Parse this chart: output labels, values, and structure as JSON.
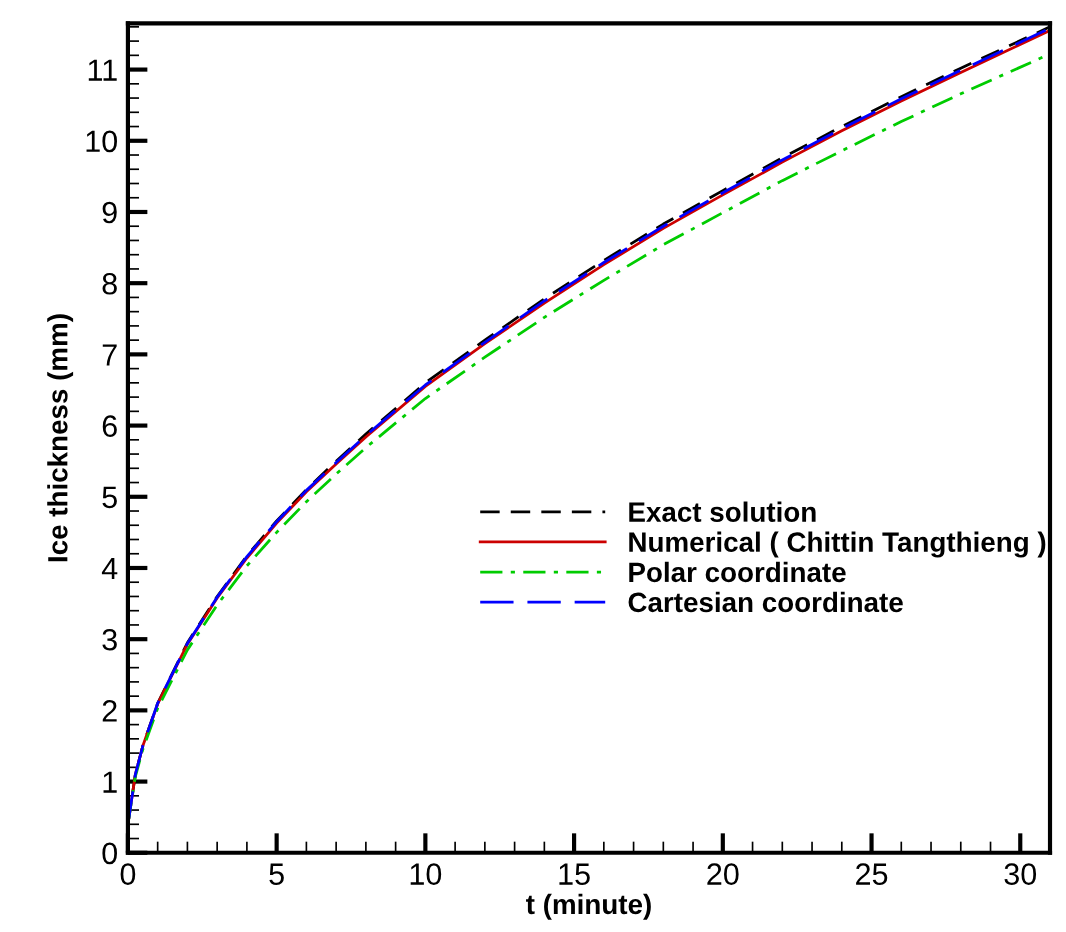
{
  "chart_data": {
    "type": "line",
    "xlabel": "t (minute)",
    "ylabel": "Ice thickness (mm)",
    "xlim": [
      0,
      31
    ],
    "ylim": [
      0,
      11.65
    ],
    "xticks": [
      0,
      5,
      10,
      15,
      20,
      25,
      30
    ],
    "yticks": [
      0,
      1,
      2,
      3,
      4,
      5,
      6,
      7,
      8,
      9,
      10,
      11
    ],
    "grid": false,
    "legend": "bottom right",
    "x": [
      0,
      0.25,
      0.5,
      1,
      2,
      3,
      4,
      5,
      6,
      7,
      8,
      10,
      12,
      14,
      16,
      18,
      20,
      22,
      24,
      26,
      28,
      31
    ],
    "series": [
      {
        "name": "Exact solution",
        "color": "#000000",
        "line_style": "dashed",
        "values": [
          0.4,
          1.1,
          1.5,
          2.1,
          2.95,
          3.6,
          4.17,
          4.66,
          5.1,
          5.5,
          5.88,
          6.6,
          7.2,
          7.78,
          8.32,
          8.83,
          9.3,
          9.76,
          10.2,
          10.62,
          11.02,
          11.6
        ]
      },
      {
        "name": "Numerical ( Chittin Tangthieng )",
        "color": "#cc0000",
        "line_style": "solid",
        "values": [
          0.4,
          1.1,
          1.5,
          2.09,
          2.93,
          3.58,
          4.14,
          4.63,
          5.07,
          5.46,
          5.84,
          6.55,
          7.15,
          7.72,
          8.26,
          8.77,
          9.24,
          9.7,
          10.14,
          10.56,
          10.96,
          11.55
        ]
      },
      {
        "name": "Polar coordinate",
        "color": "#00cc00",
        "line_style": "dashdot",
        "values": [
          0.4,
          1.07,
          1.45,
          2.03,
          2.85,
          3.48,
          4.03,
          4.5,
          4.93,
          5.32,
          5.69,
          6.38,
          6.96,
          7.52,
          8.04,
          8.54,
          8.99,
          9.44,
          9.86,
          10.27,
          10.66,
          11.22
        ]
      },
      {
        "name": "Cartesian coordinate",
        "color": "#0000ff",
        "line_style": "longdash",
        "values": [
          0.4,
          1.1,
          1.5,
          2.1,
          2.94,
          3.59,
          4.16,
          4.65,
          5.09,
          5.48,
          5.86,
          6.57,
          7.17,
          7.75,
          8.29,
          8.8,
          9.27,
          9.73,
          10.17,
          10.59,
          10.99,
          11.58
        ]
      }
    ]
  }
}
